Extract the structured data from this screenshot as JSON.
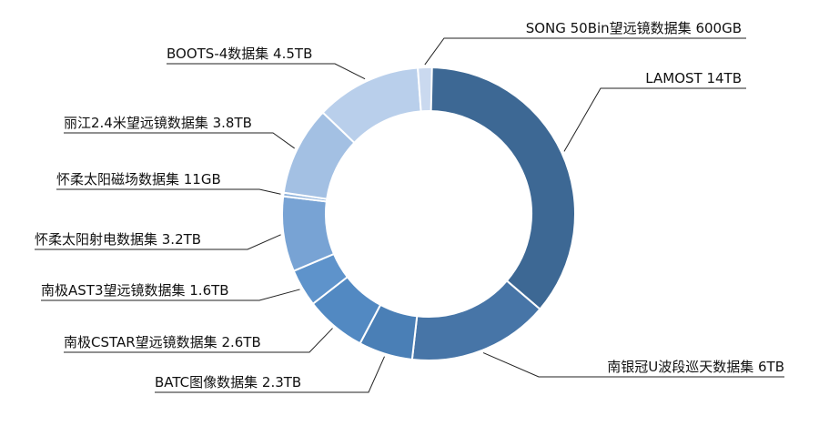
{
  "chart_data": {
    "type": "pie",
    "variant": "donut",
    "legend": "none",
    "slices": [
      {
        "label": "LAMOST 14TB",
        "value": 14.0,
        "color": "#3d6894"
      },
      {
        "label": "南银冠U波段巡天数据集 6TB",
        "value": 6.0,
        "color": "#4775a7"
      },
      {
        "label": "BATC图像数据集 2.3TB",
        "value": 2.3,
        "color": "#4a7fb6"
      },
      {
        "label": "南极CSTAR望远镜数据集 2.6TB",
        "value": 2.6,
        "color": "#5289c2"
      },
      {
        "label": "南极AST3望远镜数据集 1.6TB",
        "value": 1.6,
        "color": "#5e93cb"
      },
      {
        "label": "怀柔太阳射电数据集 3.2TB",
        "value": 3.2,
        "color": "#78a3d4"
      },
      {
        "label": "怀柔太阳磁场数据集 11GB",
        "value": 0.011,
        "color": "#8fb3dc"
      },
      {
        "label": "丽江2.4米望远镜数据集 3.8TB",
        "value": 3.8,
        "color": "#a3c0e3"
      },
      {
        "label": "BOOTS-4数据集 4.5TB",
        "value": 4.5,
        "color": "#b9cfeb"
      },
      {
        "label": "SONG 50Bin望远镜数据集 600GB",
        "value": 0.6,
        "color": "#cad9ef"
      }
    ]
  }
}
